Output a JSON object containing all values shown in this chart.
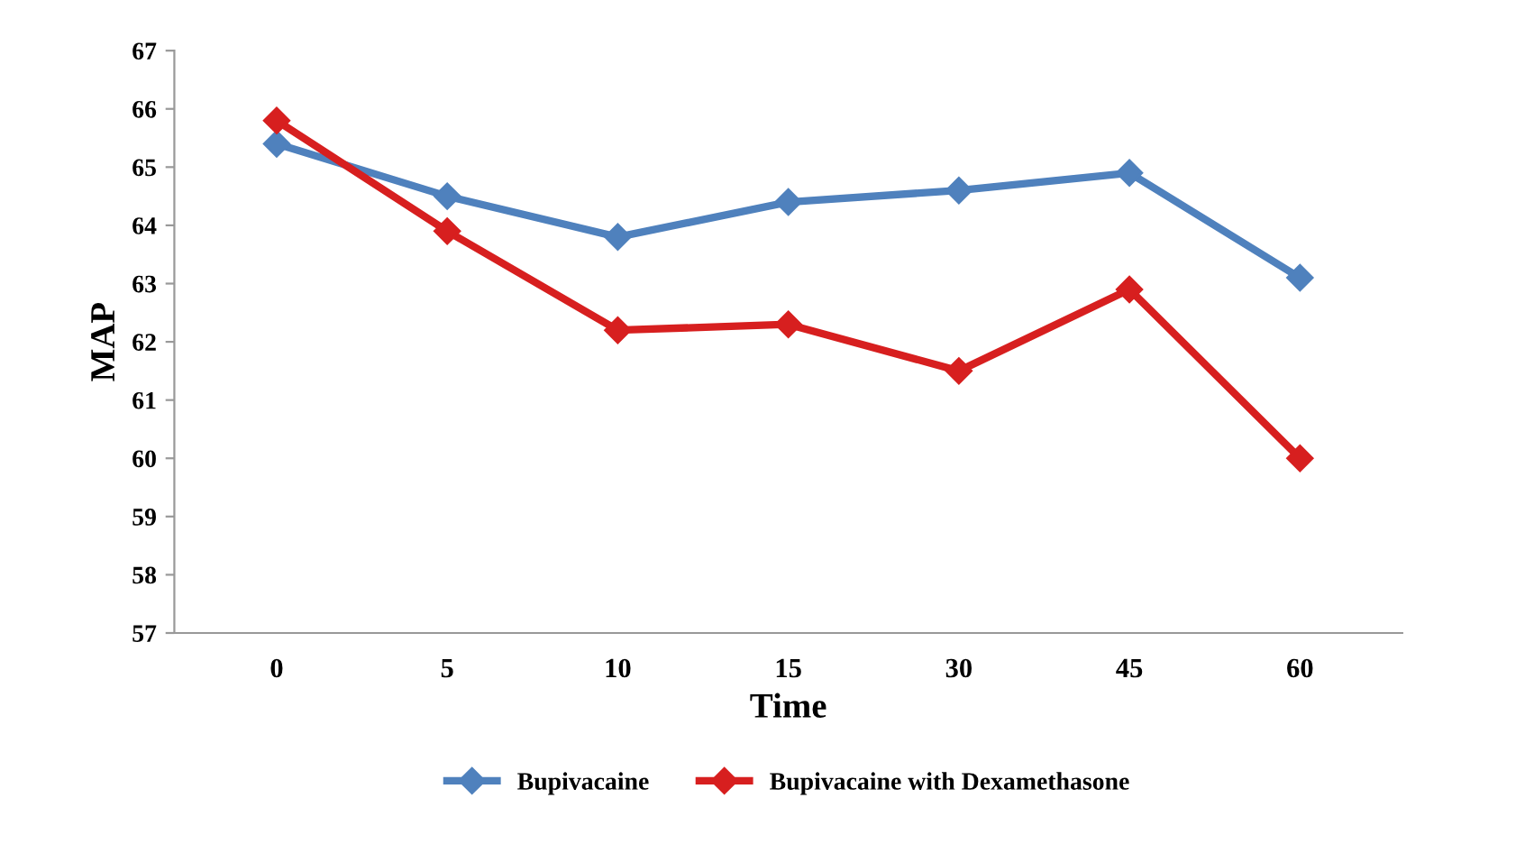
{
  "chart_data": {
    "type": "line",
    "xlabel": "Time",
    "ylabel": "MAP",
    "categories": [
      "0",
      "5",
      "10",
      "15",
      "30",
      "45",
      "60"
    ],
    "series": [
      {
        "name": "Bupivacaine",
        "color": "#4f81bd",
        "values": [
          65.4,
          64.5,
          63.8,
          64.4,
          64.6,
          64.9,
          63.1
        ]
      },
      {
        "name": "Bupivacaine with Dexamethasone",
        "color": "#d71f1f",
        "values": [
          65.8,
          63.9,
          62.2,
          62.3,
          61.5,
          62.9,
          60.0
        ]
      }
    ],
    "ylim": [
      57,
      67
    ],
    "yticks": [
      57,
      58,
      59,
      60,
      61,
      62,
      63,
      64,
      65,
      66,
      67
    ],
    "grid": false,
    "legend": "bottom",
    "marker": "diamond",
    "line_style": "solid"
  }
}
